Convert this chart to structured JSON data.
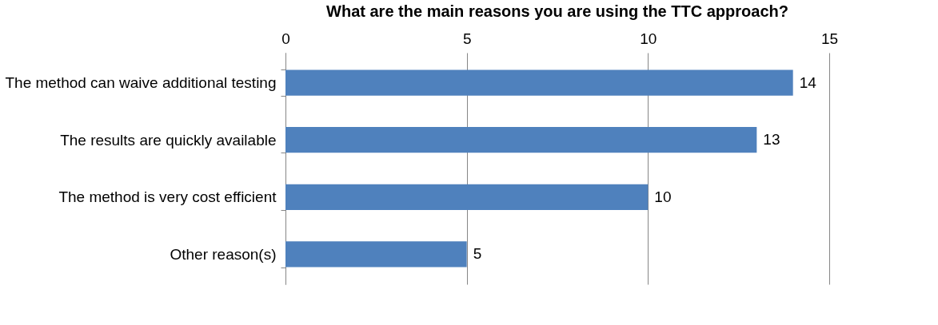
{
  "chart_data": {
    "type": "bar",
    "orientation": "horizontal",
    "title": "What are the main reasons you are using the TTC approach?",
    "categories": [
      "The method can waive additional testing",
      "The results are quickly available",
      "The method is very cost efficient",
      "Other reason(s)"
    ],
    "values": [
      14,
      13,
      10,
      5
    ],
    "color": "#4f81bd",
    "xlim": [
      0,
      15
    ],
    "xticks": [
      0,
      5,
      10,
      15
    ],
    "grid": "x",
    "data_labels": true
  }
}
